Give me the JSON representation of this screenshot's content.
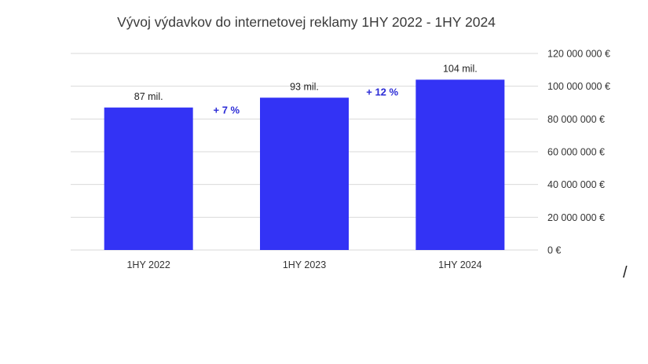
{
  "chart_data": {
    "type": "bar",
    "title": "Vývoj výdavkov do internetovej reklamy 1HY 2022 - 1HY 2024",
    "xlabel": "",
    "ylabel": "",
    "categories": [
      "1HY 2022",
      "1HY 2023",
      "1HY 2024"
    ],
    "values": [
      87000000,
      93000000,
      104000000
    ],
    "data_labels": [
      "87 mil.",
      "93 mil.",
      "104 mil."
    ],
    "ylim": [
      0,
      120000000
    ],
    "y_ticks": [
      0,
      20000000,
      40000000,
      60000000,
      80000000,
      100000000,
      120000000
    ],
    "y_tick_labels": [
      "0 €",
      "20 000 000 €",
      "40 000 000 €",
      "60 000 000 €",
      "80 000 000 €",
      "100 000 000 €",
      "120 000 000 €"
    ],
    "y_axis_side": "right",
    "grid": true,
    "legend": "none",
    "bar_color": "#3333f5",
    "growth_annotations": [
      {
        "between": [
          "1HY 2022",
          "1HY 2023"
        ],
        "text": "+ 7  %"
      },
      {
        "between": [
          "1HY 2023",
          "1HY 2024"
        ],
        "text": "+ 12 %"
      }
    ],
    "annotation_color": "#2b2bd6",
    "grid_color": "#d9d9d9"
  },
  "extra_mark": "/"
}
